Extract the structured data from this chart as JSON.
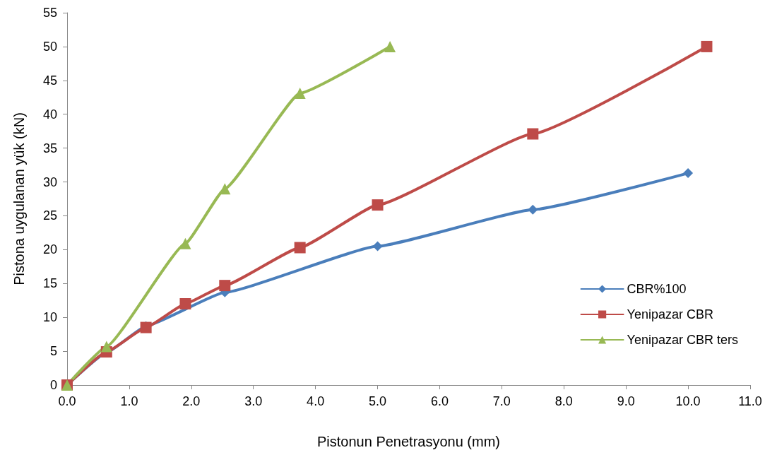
{
  "chart_data": {
    "type": "line",
    "xlabel": "Pistonun Penetrasyonu (mm)",
    "ylabel": "Pistona uygulanan yük (kN)",
    "xlim": [
      0,
      11
    ],
    "xticks": [
      {
        "value": 0,
        "label": "0.0"
      },
      {
        "value": 1,
        "label": "1.0"
      },
      {
        "value": 2,
        "label": "2.0"
      },
      {
        "value": 3,
        "label": "3.0"
      },
      {
        "value": 4,
        "label": "4.0"
      },
      {
        "value": 5,
        "label": "5.0"
      },
      {
        "value": 6,
        "label": "6.0"
      },
      {
        "value": 7,
        "label": "7.0"
      },
      {
        "value": 8,
        "label": "8.0"
      },
      {
        "value": 9,
        "label": "9.0"
      },
      {
        "value": 10,
        "label": "10.0"
      },
      {
        "value": 11,
        "label": "11.0"
      }
    ],
    "ylim": [
      0,
      55
    ],
    "yticks": [
      0,
      5,
      10,
      15,
      20,
      25,
      30,
      35,
      40,
      45,
      50,
      55
    ],
    "grid": false,
    "legend": "right",
    "line_style": "solid",
    "series": [
      {
        "name": "CBR%100",
        "color": "#4a7ebb",
        "marker": "diamond",
        "x": [
          0,
          0.635,
          1.27,
          1.905,
          2.54,
          5.0,
          7.5,
          10.0
        ],
        "values": [
          0,
          4.8,
          8.7,
          null,
          13.7,
          20.5,
          25.9,
          31.3
        ]
      },
      {
        "name": "Yenipazar CBR",
        "color": "#be4b48",
        "marker": "square",
        "x": [
          0,
          0.635,
          1.27,
          1.905,
          2.54,
          3.75,
          5.0,
          7.5,
          10.3
        ],
        "values": [
          0,
          4.9,
          8.5,
          12.0,
          14.7,
          20.3,
          26.6,
          37.1,
          50.0
        ]
      },
      {
        "name": "Yenipazar CBR ters",
        "color": "#98b954",
        "marker": "triangle",
        "x": [
          0,
          0.635,
          1.905,
          2.54,
          3.75,
          5.2
        ],
        "values": [
          0,
          5.7,
          20.9,
          29.0,
          43.1,
          50.0
        ]
      }
    ]
  }
}
